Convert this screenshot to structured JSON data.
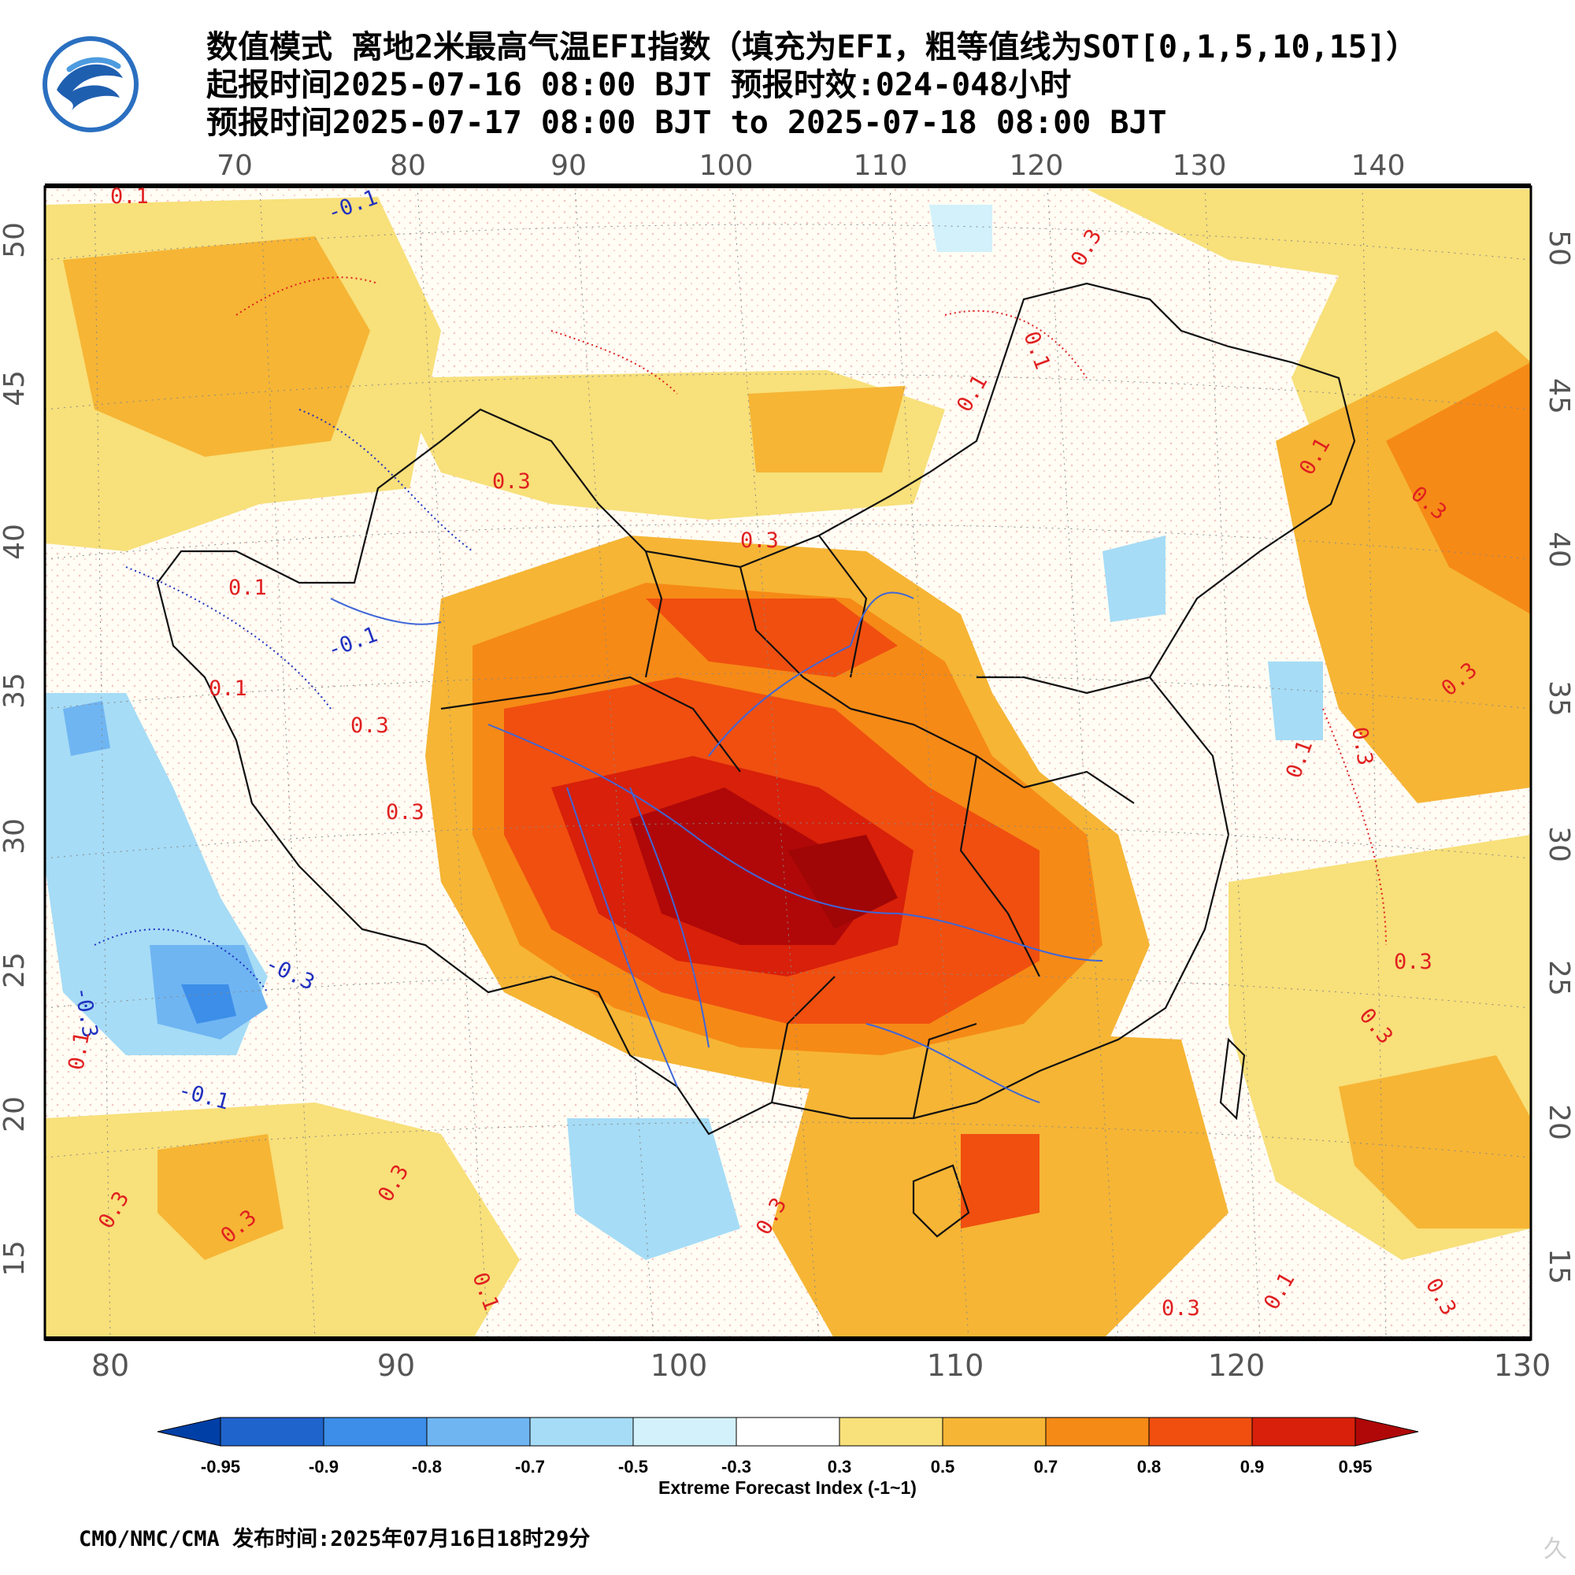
{
  "title": {
    "line1": "数值模式 离地2米最高气温EFI指数（填充为EFI，粗等值线为SOT[0,1,5,10,15]）",
    "line2": "起报时间2025-07-16 08:00 BJT 预报时效:024-048小时",
    "line3": "预报时间2025-07-17 08:00 BJT to 2025-07-18 08:00 BJT"
  },
  "logo": {
    "icon": "cma-logo",
    "colors": [
      "#1f5fb0",
      "#3f8fd8"
    ]
  },
  "map": {
    "top_lon_labels": [
      "70",
      "80",
      "90",
      "100",
      "110",
      "120",
      "130",
      "140"
    ],
    "bottom_lon_labels": [
      "80",
      "90",
      "100",
      "110",
      "120",
      "130"
    ],
    "left_lat_labels": [
      "50",
      "45",
      "40",
      "35",
      "30",
      "25",
      "20",
      "15"
    ],
    "right_lat_labels": [
      "50",
      "45",
      "40",
      "35",
      "30",
      "25",
      "20",
      "15"
    ],
    "contour_labels": [
      {
        "text": "0.1",
        "color": "#e02020"
      },
      {
        "text": "-0.1",
        "color": "#2030c0"
      },
      {
        "text": "0.3",
        "color": "#e02020"
      },
      {
        "text": "0.3",
        "color": "#e02020"
      },
      {
        "text": "0.1",
        "color": "#e02020"
      },
      {
        "text": "0.1",
        "color": "#e02020"
      },
      {
        "text": "0.3",
        "color": "#e02020"
      },
      {
        "text": "0.1",
        "color": "#e02020"
      },
      {
        "text": "0.1",
        "color": "#e02020"
      },
      {
        "text": "-0.1",
        "color": "#2030c0"
      },
      {
        "text": "0.1",
        "color": "#e02020"
      },
      {
        "text": "0.3",
        "color": "#e02020"
      },
      {
        "text": "0.3",
        "color": "#e02020"
      },
      {
        "text": "-0.3",
        "color": "#2030c0"
      },
      {
        "text": "-0.3",
        "color": "#2030c0"
      },
      {
        "text": "0.1",
        "color": "#e02020"
      },
      {
        "text": "-0.1",
        "color": "#2030c0"
      },
      {
        "text": "0.3",
        "color": "#e02020"
      },
      {
        "text": "0.3",
        "color": "#e02020"
      },
      {
        "text": "0.3",
        "color": "#e02020"
      },
      {
        "text": "0.1",
        "color": "#e02020"
      },
      {
        "text": "0.3",
        "color": "#e02020"
      },
      {
        "text": "0.3",
        "color": "#e02020"
      },
      {
        "text": "0.3",
        "color": "#e02020"
      },
      {
        "text": "0.3",
        "color": "#e02020"
      },
      {
        "text": "0.1",
        "color": "#e02020"
      },
      {
        "text": "0.3",
        "color": "#e02020"
      },
      {
        "text": "0.3",
        "color": "#e02020"
      },
      {
        "text": "0.1",
        "color": "#e02020"
      },
      {
        "text": "0.3",
        "color": "#e02020"
      },
      {
        "text": "0.3",
        "color": "#e02020"
      }
    ]
  },
  "legend": {
    "ticks": [
      "-0.95",
      "-0.9",
      "-0.8",
      "-0.7",
      "-0.5",
      "-0.3",
      "0.3",
      "0.5",
      "0.7",
      "0.8",
      "0.9",
      "0.95"
    ],
    "colors": [
      "#003fa6",
      "#1f64cc",
      "#3c8ee8",
      "#6fb5f2",
      "#a6dcf6",
      "#d2f1fa",
      "#ffffff",
      "#f8e07a",
      "#f6b535",
      "#f68a16",
      "#f04f10",
      "#d8200a",
      "#b00808"
    ],
    "label": "Extreme Forecast Index (-1~1)"
  },
  "footer": {
    "text": "CMO/NMC/CMA 发布时间:2025年07月16日18时29分"
  },
  "watermark": {
    "text": "久"
  }
}
